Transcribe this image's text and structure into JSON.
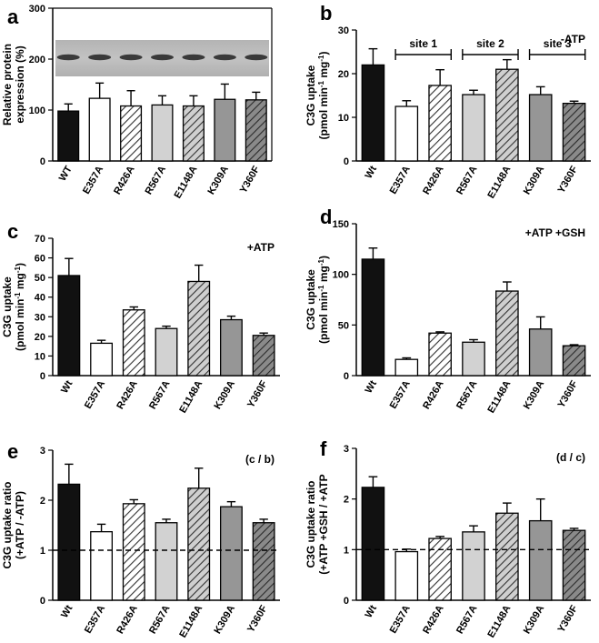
{
  "chart_data": [
    {
      "panel": "a",
      "type": "bar",
      "ylabel": [
        "Relative protein",
        "expression (%)"
      ],
      "ylim": [
        0,
        300
      ],
      "yticks": [
        0,
        100,
        200,
        300
      ],
      "categories": [
        "WT",
        "E357A",
        "R426A",
        "R567A",
        "E1148A",
        "K309A",
        "Y360F"
      ],
      "values": [
        98,
        123,
        108,
        110,
        108,
        121,
        120
      ],
      "errors": [
        14,
        30,
        30,
        18,
        20,
        30,
        15
      ],
      "styles": [
        "black",
        "white",
        "hatch",
        "light",
        "hatch-light",
        "mid",
        "hatch-dark"
      ],
      "annotations": [],
      "inset": "western blot image",
      "reference_line": null
    },
    {
      "panel": "b",
      "type": "bar",
      "ylabel": [
        "C3G uptake",
        "(pmol min⁻¹ mg⁻¹)"
      ],
      "ylim": [
        0,
        30
      ],
      "yticks": [
        0,
        10,
        20,
        30
      ],
      "categories": [
        "Wt",
        "E357A",
        "R426A",
        "R567A",
        "E1148A",
        "K309A",
        "Y360F"
      ],
      "values": [
        22,
        12.5,
        17.3,
        15.2,
        21,
        15.2,
        13.2
      ],
      "errors": [
        3.7,
        1.3,
        3.6,
        1.0,
        2.2,
        1.8,
        0.5
      ],
      "styles": [
        "black",
        "white",
        "hatch",
        "light",
        "hatch-light",
        "mid",
        "hatch-dark"
      ],
      "annotations": [
        "-ATP"
      ],
      "sites": [
        {
          "label": "site 1",
          "from": 1,
          "to": 2
        },
        {
          "label": "site 2",
          "from": 3,
          "to": 4
        },
        {
          "label": "site 3",
          "from": 5,
          "to": 6
        }
      ],
      "reference_line": null
    },
    {
      "panel": "c",
      "type": "bar",
      "ylabel": [
        "C3G uptake",
        "(pmol min⁻¹ mg⁻¹)"
      ],
      "ylim": [
        0,
        70
      ],
      "yticks": [
        0,
        10,
        20,
        30,
        40,
        50,
        60,
        70
      ],
      "categories": [
        "Wt",
        "E357A",
        "R426A",
        "R567A",
        "E1148A",
        "K309A",
        "Y360F"
      ],
      "values": [
        51,
        16.5,
        33.5,
        24,
        48,
        28.5,
        20.5
      ],
      "errors": [
        8.7,
        1.5,
        1.5,
        1.2,
        8.3,
        1.8,
        1.2
      ],
      "styles": [
        "black",
        "white",
        "hatch",
        "light",
        "hatch-light",
        "mid",
        "hatch-dark"
      ],
      "annotations": [
        "+ATP"
      ],
      "reference_line": null
    },
    {
      "panel": "d",
      "type": "bar",
      "ylabel": [
        "C3G uptake",
        "(pmol min⁻¹ mg⁻¹)"
      ],
      "ylim": [
        0,
        150
      ],
      "yticks": [
        0,
        50,
        100,
        150
      ],
      "categories": [
        "Wt",
        "E357A",
        "R426A",
        "R567A",
        "E1148A",
        "K309A",
        "Y360F"
      ],
      "values": [
        115,
        16,
        42,
        33,
        83.5,
        46,
        29.5
      ],
      "errors": [
        11,
        1.5,
        1.2,
        2.5,
        9,
        12,
        1.0
      ],
      "styles": [
        "black",
        "white",
        "hatch",
        "light",
        "hatch-light",
        "mid",
        "hatch-dark"
      ],
      "annotations": [
        "+ATP +GSH"
      ],
      "reference_line": null
    },
    {
      "panel": "e",
      "type": "bar",
      "ylabel": [
        "C3G uptake ratio",
        "(+ATP / -ATP)"
      ],
      "ylim": [
        0,
        3
      ],
      "yticks": [
        0,
        1,
        2,
        3
      ],
      "categories": [
        "Wt",
        "E357A",
        "R426A",
        "R567A",
        "E1148A",
        "K309A",
        "Y360F"
      ],
      "values": [
        2.32,
        1.37,
        1.93,
        1.55,
        2.24,
        1.87,
        1.55
      ],
      "errors": [
        0.4,
        0.15,
        0.08,
        0.07,
        0.4,
        0.1,
        0.07
      ],
      "styles": [
        "black",
        "white",
        "hatch",
        "light",
        "hatch-light",
        "mid",
        "hatch-dark"
      ],
      "annotations": [
        "(c / b)"
      ],
      "reference_line": 1
    },
    {
      "panel": "f",
      "type": "bar",
      "ylabel": [
        "C3G uptake ratio",
        "(+ATP +GSH / +ATP"
      ],
      "ylim": [
        0,
        3
      ],
      "yticks": [
        0,
        1,
        2,
        3
      ],
      "categories": [
        "Wt",
        "E357A",
        "R426A",
        "R567A",
        "E1148A",
        "K309A",
        "Y360F"
      ],
      "values": [
        2.23,
        0.96,
        1.22,
        1.35,
        1.72,
        1.57,
        1.38
      ],
      "errors": [
        0.21,
        0.05,
        0.04,
        0.12,
        0.2,
        0.43,
        0.04
      ],
      "styles": [
        "black",
        "white",
        "hatch",
        "light",
        "hatch-light",
        "mid",
        "hatch-dark"
      ],
      "annotations": [
        "(d / c)"
      ],
      "reference_line": 1
    }
  ]
}
